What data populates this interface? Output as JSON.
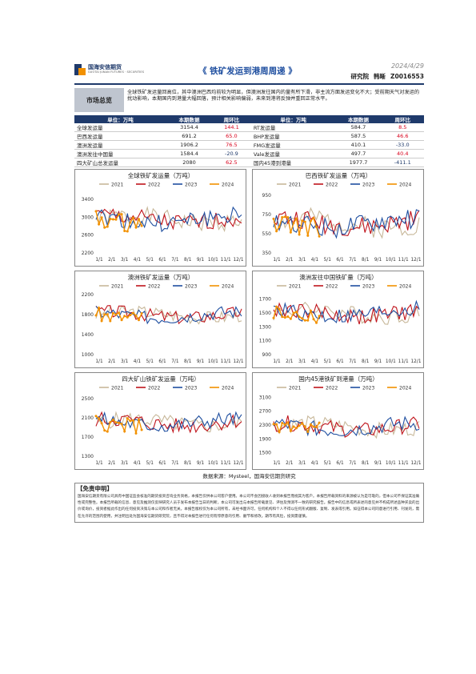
{
  "header": {
    "logo_cn": "国海安信期货",
    "logo_en": "GUOTAI JUNAN FUTURES · SECURITIES",
    "title": "《 铁矿发运到港周周递 》",
    "date": "2024/4/29",
    "dept": "研究院",
    "author": "韩晰",
    "code": "Z0016553"
  },
  "summary": {
    "label": "市场总览",
    "text": "全球铁矿发运量回高位，其中澳洲巴西均前较为明显，但澳洲发往国内的量有所下滑，非主流方面发运变化不大；受前期天气对发运的扰动影响，本期国内到港量大幅回落，预计相关影响偏弱，未来到港将反弹并重回正常水平。"
  },
  "table": {
    "headers": [
      "单位：万吨",
      "本期数据",
      "周环比",
      "单位：万吨",
      "本期数据",
      "周环比"
    ],
    "rows": [
      {
        "l_name": "全球发运量",
        "l_val": "3154.4",
        "l_chg": "144.1",
        "l_cls": "red",
        "r_name": "RT发运量",
        "r_val": "584.7",
        "r_chg": "8.5",
        "r_cls": "red"
      },
      {
        "l_name": "巴西发运量",
        "l_val": "691.2",
        "l_chg": "65.0",
        "l_cls": "red",
        "r_name": "BHP发运量",
        "r_val": "587.5",
        "r_chg": "46.6",
        "r_cls": "red"
      },
      {
        "l_name": "澳洲发运量",
        "l_val": "1906.2",
        "l_chg": "76.5",
        "l_cls": "red",
        "r_name": "FMG发运量",
        "r_val": "410.1",
        "r_chg": "-33.0",
        "r_cls": "green"
      },
      {
        "l_name": "澳洲发往中国量",
        "l_val": "1584.4",
        "l_chg": "-20.9",
        "l_cls": "green",
        "r_name": "Vale发运量",
        "r_val": "497.7",
        "r_chg": "40.4",
        "r_cls": "red"
      },
      {
        "l_name": "四大矿山总发运量",
        "l_val": "2080",
        "l_chg": "62.5",
        "l_cls": "red",
        "r_name": "国内45港到港量",
        "r_val": "1977.7",
        "r_chg": "-411.1",
        "r_cls": "green"
      }
    ]
  },
  "colors": {
    "y2021": "#c8b89a",
    "y2022": "#c0141c",
    "y2023": "#1f4fa0",
    "y2024": "#f29100",
    "brand": "#1f3a6b"
  },
  "chart_data": [
    {
      "type": "line",
      "title": "全球铁矿发运量（万吨）",
      "x_ticks": [
        "1/1",
        "2/1",
        "3/1",
        "4/1",
        "5/1",
        "6/1",
        "7/1",
        "8/1",
        "9/1",
        "10/1",
        "11/1",
        "12/1"
      ],
      "yticks": [
        2200,
        2600,
        3000,
        3400
      ],
      "ylim": [
        2200,
        3600
      ],
      "legend": [
        "2021",
        "2022",
        "2023",
        "2024"
      ],
      "base": 2950,
      "amp": 220,
      "seed": 1,
      "n2024": 17
    },
    {
      "type": "line",
      "title": "巴西铁矿发运量（万吨）",
      "x_ticks": [
        "1/1",
        "2/1",
        "3/1",
        "4/1",
        "5/1",
        "6/1",
        "7/1",
        "8/1",
        "9/1",
        "10/1",
        "11/1",
        "12/1"
      ],
      "yticks": [
        350,
        550,
        750,
        950
      ],
      "ylim": [
        350,
        1000
      ],
      "legend": [
        "2021",
        "2022",
        "2023",
        "2024"
      ],
      "base": 660,
      "amp": 120,
      "seed": 2,
      "n2024": 17
    },
    {
      "type": "line",
      "title": "澳洲铁矿发运量（万吨）",
      "x_ticks": [
        "1/1",
        "2/1",
        "3/1",
        "4/1",
        "5/1",
        "6/1",
        "7/1",
        "8/1",
        "9/1",
        "10/1",
        "11/1",
        "12/1"
      ],
      "yticks": [
        1000,
        1400,
        1800,
        2200
      ],
      "ylim": [
        1000,
        2250
      ],
      "legend": [
        "2021",
        "2022",
        "2023",
        "2024"
      ],
      "base": 1800,
      "amp": 150,
      "seed": 3,
      "n2024": 17
    },
    {
      "type": "line",
      "title": "澳洲发往中国铁矿量（万吨）",
      "x_ticks": [
        "1/1",
        "2/1",
        "3/1",
        "4/1",
        "5/1",
        "6/1",
        "7/1",
        "8/1",
        "9/1",
        "10/1",
        "11/1",
        "12/1"
      ],
      "yticks": [
        900,
        1100,
        1300,
        1500,
        1700
      ],
      "ylim": [
        900,
        1800
      ],
      "legend": [
        "2021",
        "2022",
        "2023",
        "2024"
      ],
      "base": 1500,
      "amp": 130,
      "seed": 4,
      "n2024": 17
    },
    {
      "type": "line",
      "title": "四大矿山铁矿发运量（万吨）",
      "x_ticks": [
        "1/1",
        "2/1",
        "3/1",
        "4/1",
        "5/1",
        "6/1",
        "7/1",
        "8/1",
        "9/1",
        "10/1",
        "11/1",
        "12/1"
      ],
      "yticks": [
        1300,
        1700,
        2100,
        2500
      ],
      "ylim": [
        1300,
        2600
      ],
      "legend": [
        "2021",
        "2022",
        "2023",
        "2024"
      ],
      "base": 2000,
      "amp": 180,
      "seed": 5,
      "n2024": 17
    },
    {
      "type": "line",
      "title": "国内45港铁矿到港量（万吨）",
      "x_ticks": [
        "1/1",
        "2/1",
        "3/1",
        "4/1",
        "5/1",
        "6/1",
        "7/1",
        "8/1",
        "9/1",
        "10/1",
        "11/1",
        "12/1"
      ],
      "yticks": [
        1500,
        1900,
        2300,
        2700,
        3100
      ],
      "ylim": [
        1400,
        3200
      ],
      "legend": [
        "2021",
        "2022",
        "2023",
        "2024"
      ],
      "base": 2250,
      "amp": 250,
      "seed": 6,
      "n2024": 17
    }
  ],
  "source": "数据来源：Mysteel，国海安信期货研究",
  "disclaimer": {
    "title": "【免责申明】",
    "text": "国海安信期货有限公司具有中国证监会核准的期货投资咨询业务资格，本报告仅供本公司客户使用。本公司不会因接收人收到本报告而视其为客户。本报告所载资料的来源被认为是可靠的，但本公司不保证其准确性或完整性。本报告所载的信息、意见及推测仅反映研究人员于发布本报告当日的判断，本公司可发出与本报告所载意见、评估及预测不一致的研究报告。报告中的信息或所表述的意见并不构成所述品种买卖的出价或询价，投资者据此作出的任何投资决策与本公司和作者无关。本报告版权仅为本公司所有，未经书面许可，任何机构和个人不得以任何形式翻版、复制、发表或引用。如征得本公司同意进行引用、刊发的，需在允许的范围内使用，并注明出处为国海安信期货研究院，且不得对本报告进行任何有悖原意的引用、删节和修改。期市有风险，投资需谨慎。"
  }
}
